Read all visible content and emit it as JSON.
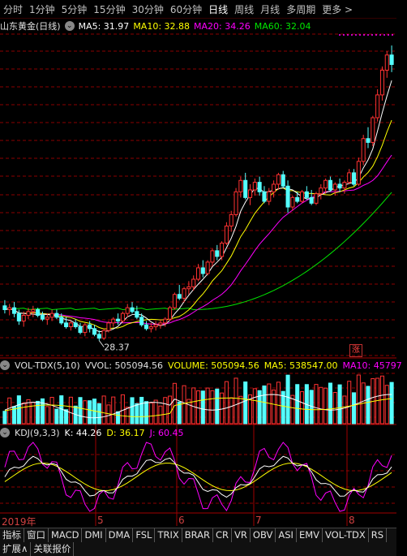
{
  "periods": [
    "分时",
    "1分钟",
    "5分钟",
    "15分钟",
    "30分钟",
    "60分钟",
    "日线",
    "周线",
    "月线",
    "多周期",
    "更多 >"
  ],
  "active_period": "日线",
  "ma_legend": {
    "title": "山东黄金(日线)",
    "ma5": "MA5: 31.97",
    "ma10": "MA10: 32.88",
    "ma20": "MA20: 34.26",
    "ma60": "MA60: 32.04"
  },
  "low_label": "28.37",
  "zhang_label": "涨",
  "vol_legend": {
    "name": "VOL-TDX(5,10)",
    "vvol": "VVOL: 505094.56",
    "volume": "VOLUME: 505094.56",
    "ma5": "MA5: 538547.00",
    "ma10": "MA10: 45797"
  },
  "kdj_legend": {
    "name": "KDJ(9,3,3)",
    "k": "K: 44.26",
    "d": "D: 36.17",
    "j": "J: 60.45"
  },
  "x_labels": [
    "2019年",
    "5",
    "6",
    "7",
    "8"
  ],
  "indicator_tabs": [
    "指标",
    "窗口",
    "MACD",
    "DMI",
    "DMA",
    "FSL",
    "TRIX",
    "BRAR",
    "CR",
    "VR",
    "OBV",
    "ASI",
    "EMV",
    "VOL-TDX",
    "RS"
  ],
  "bottom_tabs": [
    "扩展∧",
    "关联报价"
  ],
  "colors": {
    "up": "#ff3232",
    "down": "#54ffff",
    "ma5": "#ffffff",
    "ma10": "#ffff00",
    "ma20": "#ff00ff",
    "ma60": "#00e600",
    "bg": "#000000",
    "grid": "#8b0000"
  },
  "chart_data": {
    "type": "candlestick",
    "ylim": [
      27.5,
      44.5
    ],
    "candles": [
      [
        30.2,
        30.5,
        29.8,
        30.0
      ],
      [
        30.0,
        30.3,
        29.7,
        30.1
      ],
      [
        30.1,
        30.4,
        29.6,
        29.8
      ],
      [
        29.8,
        30.0,
        29.2,
        29.4
      ],
      [
        29.4,
        29.9,
        29.1,
        29.7
      ],
      [
        29.7,
        30.1,
        29.5,
        29.9
      ],
      [
        29.9,
        30.2,
        29.6,
        30.0
      ],
      [
        30.0,
        30.1,
        29.6,
        29.7
      ],
      [
        29.7,
        29.9,
        29.4,
        29.5
      ],
      [
        29.5,
        29.8,
        29.2,
        29.6
      ],
      [
        29.6,
        30.0,
        29.4,
        29.8
      ],
      [
        29.8,
        30.0,
        29.5,
        29.6
      ],
      [
        29.6,
        29.8,
        29.2,
        29.3
      ],
      [
        29.3,
        29.6,
        29.0,
        29.1
      ],
      [
        29.1,
        29.4,
        28.9,
        29.3
      ],
      [
        29.3,
        29.5,
        29.0,
        29.1
      ],
      [
        29.1,
        29.3,
        28.7,
        28.8
      ],
      [
        28.8,
        29.3,
        28.6,
        29.2
      ],
      [
        29.2,
        29.4,
        28.8,
        29.0
      ],
      [
        29.0,
        29.2,
        28.6,
        28.7
      ],
      [
        28.7,
        28.9,
        28.37,
        28.5
      ],
      [
        28.5,
        29.0,
        28.4,
        28.9
      ],
      [
        28.9,
        29.4,
        28.8,
        29.3
      ],
      [
        29.3,
        29.6,
        29.1,
        29.5
      ],
      [
        29.5,
        29.8,
        29.2,
        29.4
      ],
      [
        29.4,
        29.9,
        29.3,
        29.8
      ],
      [
        29.8,
        30.3,
        29.6,
        30.1
      ],
      [
        30.1,
        30.4,
        29.8,
        29.9
      ],
      [
        29.9,
        30.2,
        29.5,
        29.6
      ],
      [
        29.6,
        29.8,
        29.1,
        29.2
      ],
      [
        29.2,
        29.4,
        28.9,
        29.0
      ],
      [
        29.0,
        29.3,
        28.8,
        29.1
      ],
      [
        29.1,
        29.4,
        28.9,
        29.2
      ],
      [
        29.2,
        29.5,
        29.0,
        29.3
      ],
      [
        29.3,
        29.6,
        29.1,
        29.5
      ],
      [
        29.5,
        30.2,
        29.4,
        30.1
      ],
      [
        30.1,
        30.9,
        30.0,
        30.8
      ],
      [
        30.8,
        31.3,
        30.5,
        30.6
      ],
      [
        30.6,
        31.2,
        30.4,
        31.1
      ],
      [
        31.1,
        31.5,
        30.8,
        31.2
      ],
      [
        31.2,
        31.8,
        31.0,
        31.6
      ],
      [
        31.6,
        32.4,
        31.5,
        32.2
      ],
      [
        32.2,
        32.6,
        31.7,
        31.9
      ],
      [
        31.9,
        32.6,
        31.8,
        32.5
      ],
      [
        32.5,
        33.2,
        32.3,
        33.1
      ],
      [
        33.1,
        33.4,
        32.6,
        32.8
      ],
      [
        32.8,
        33.6,
        32.6,
        33.5
      ],
      [
        33.5,
        34.6,
        33.4,
        34.4
      ],
      [
        34.4,
        35.2,
        34.1,
        35.0
      ],
      [
        35.0,
        36.4,
        34.9,
        36.2
      ],
      [
        36.2,
        37.0,
        35.9,
        36.8
      ],
      [
        36.8,
        37.2,
        35.8,
        35.9
      ],
      [
        35.9,
        36.6,
        35.5,
        36.3
      ],
      [
        36.3,
        36.9,
        36.0,
        36.7
      ],
      [
        36.7,
        37.0,
        36.0,
        36.2
      ],
      [
        36.2,
        36.5,
        35.6,
        35.7
      ],
      [
        35.7,
        36.4,
        35.5,
        36.2
      ],
      [
        36.2,
        36.8,
        35.9,
        36.6
      ],
      [
        36.6,
        37.2,
        36.3,
        37.1
      ],
      [
        37.1,
        37.3,
        36.4,
        36.5
      ],
      [
        36.5,
        36.8,
        35.1,
        35.4
      ],
      [
        35.4,
        36.0,
        35.2,
        35.9
      ],
      [
        35.9,
        36.2,
        35.6,
        35.7
      ],
      [
        35.7,
        36.3,
        35.6,
        36.2
      ],
      [
        36.2,
        36.5,
        35.8,
        35.9
      ],
      [
        35.9,
        36.3,
        35.5,
        35.6
      ],
      [
        35.6,
        36.2,
        35.5,
        36.1
      ],
      [
        36.1,
        36.6,
        35.8,
        36.4
      ],
      [
        36.4,
        36.9,
        36.1,
        36.8
      ],
      [
        36.8,
        37.0,
        36.2,
        36.3
      ],
      [
        36.3,
        36.7,
        36.0,
        36.6
      ],
      [
        36.6,
        36.9,
        36.2,
        36.4
      ],
      [
        36.4,
        36.8,
        36.1,
        36.7
      ],
      [
        36.7,
        37.4,
        36.6,
        37.2
      ],
      [
        37.2,
        37.4,
        36.5,
        36.6
      ],
      [
        36.6,
        38.0,
        36.5,
        37.8
      ],
      [
        37.8,
        39.2,
        37.6,
        39.0
      ],
      [
        39.0,
        39.6,
        38.5,
        38.8
      ],
      [
        38.8,
        40.2,
        38.6,
        40.1
      ],
      [
        40.1,
        41.6,
        39.9,
        41.3
      ],
      [
        41.3,
        42.8,
        41.0,
        42.6
      ],
      [
        42.6,
        43.6,
        42.2,
        43.4
      ],
      [
        43.4,
        43.9,
        42.5,
        42.9
      ]
    ]
  }
}
